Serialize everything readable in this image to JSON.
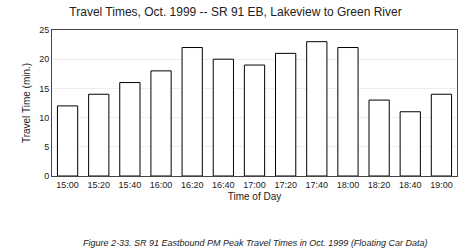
{
  "chart_data": {
    "type": "bar",
    "title": "Travel Times, Oct. 1999 -- SR 91 EB, Lakeview to Green River",
    "xlabel": "Time of Day",
    "ylabel": "Travel Time (min.)",
    "caption": "Figure 2-33. SR 91 Eastbound PM Peak Travel Times in Oct. 1999 (Floating Car Data)",
    "categories": [
      "15:00",
      "15:20",
      "15:40",
      "16:00",
      "16:20",
      "16:40",
      "17:00",
      "17:20",
      "17:40",
      "18:00",
      "18:20",
      "18:40",
      "19:00"
    ],
    "values": [
      12,
      14,
      16,
      18,
      22,
      20,
      19,
      21,
      23,
      22,
      13,
      11,
      14
    ],
    "color": "#ffffff",
    "ylim": [
      0,
      25
    ],
    "yticks": [
      0,
      5,
      10,
      15,
      20,
      25
    ],
    "grid": true
  }
}
